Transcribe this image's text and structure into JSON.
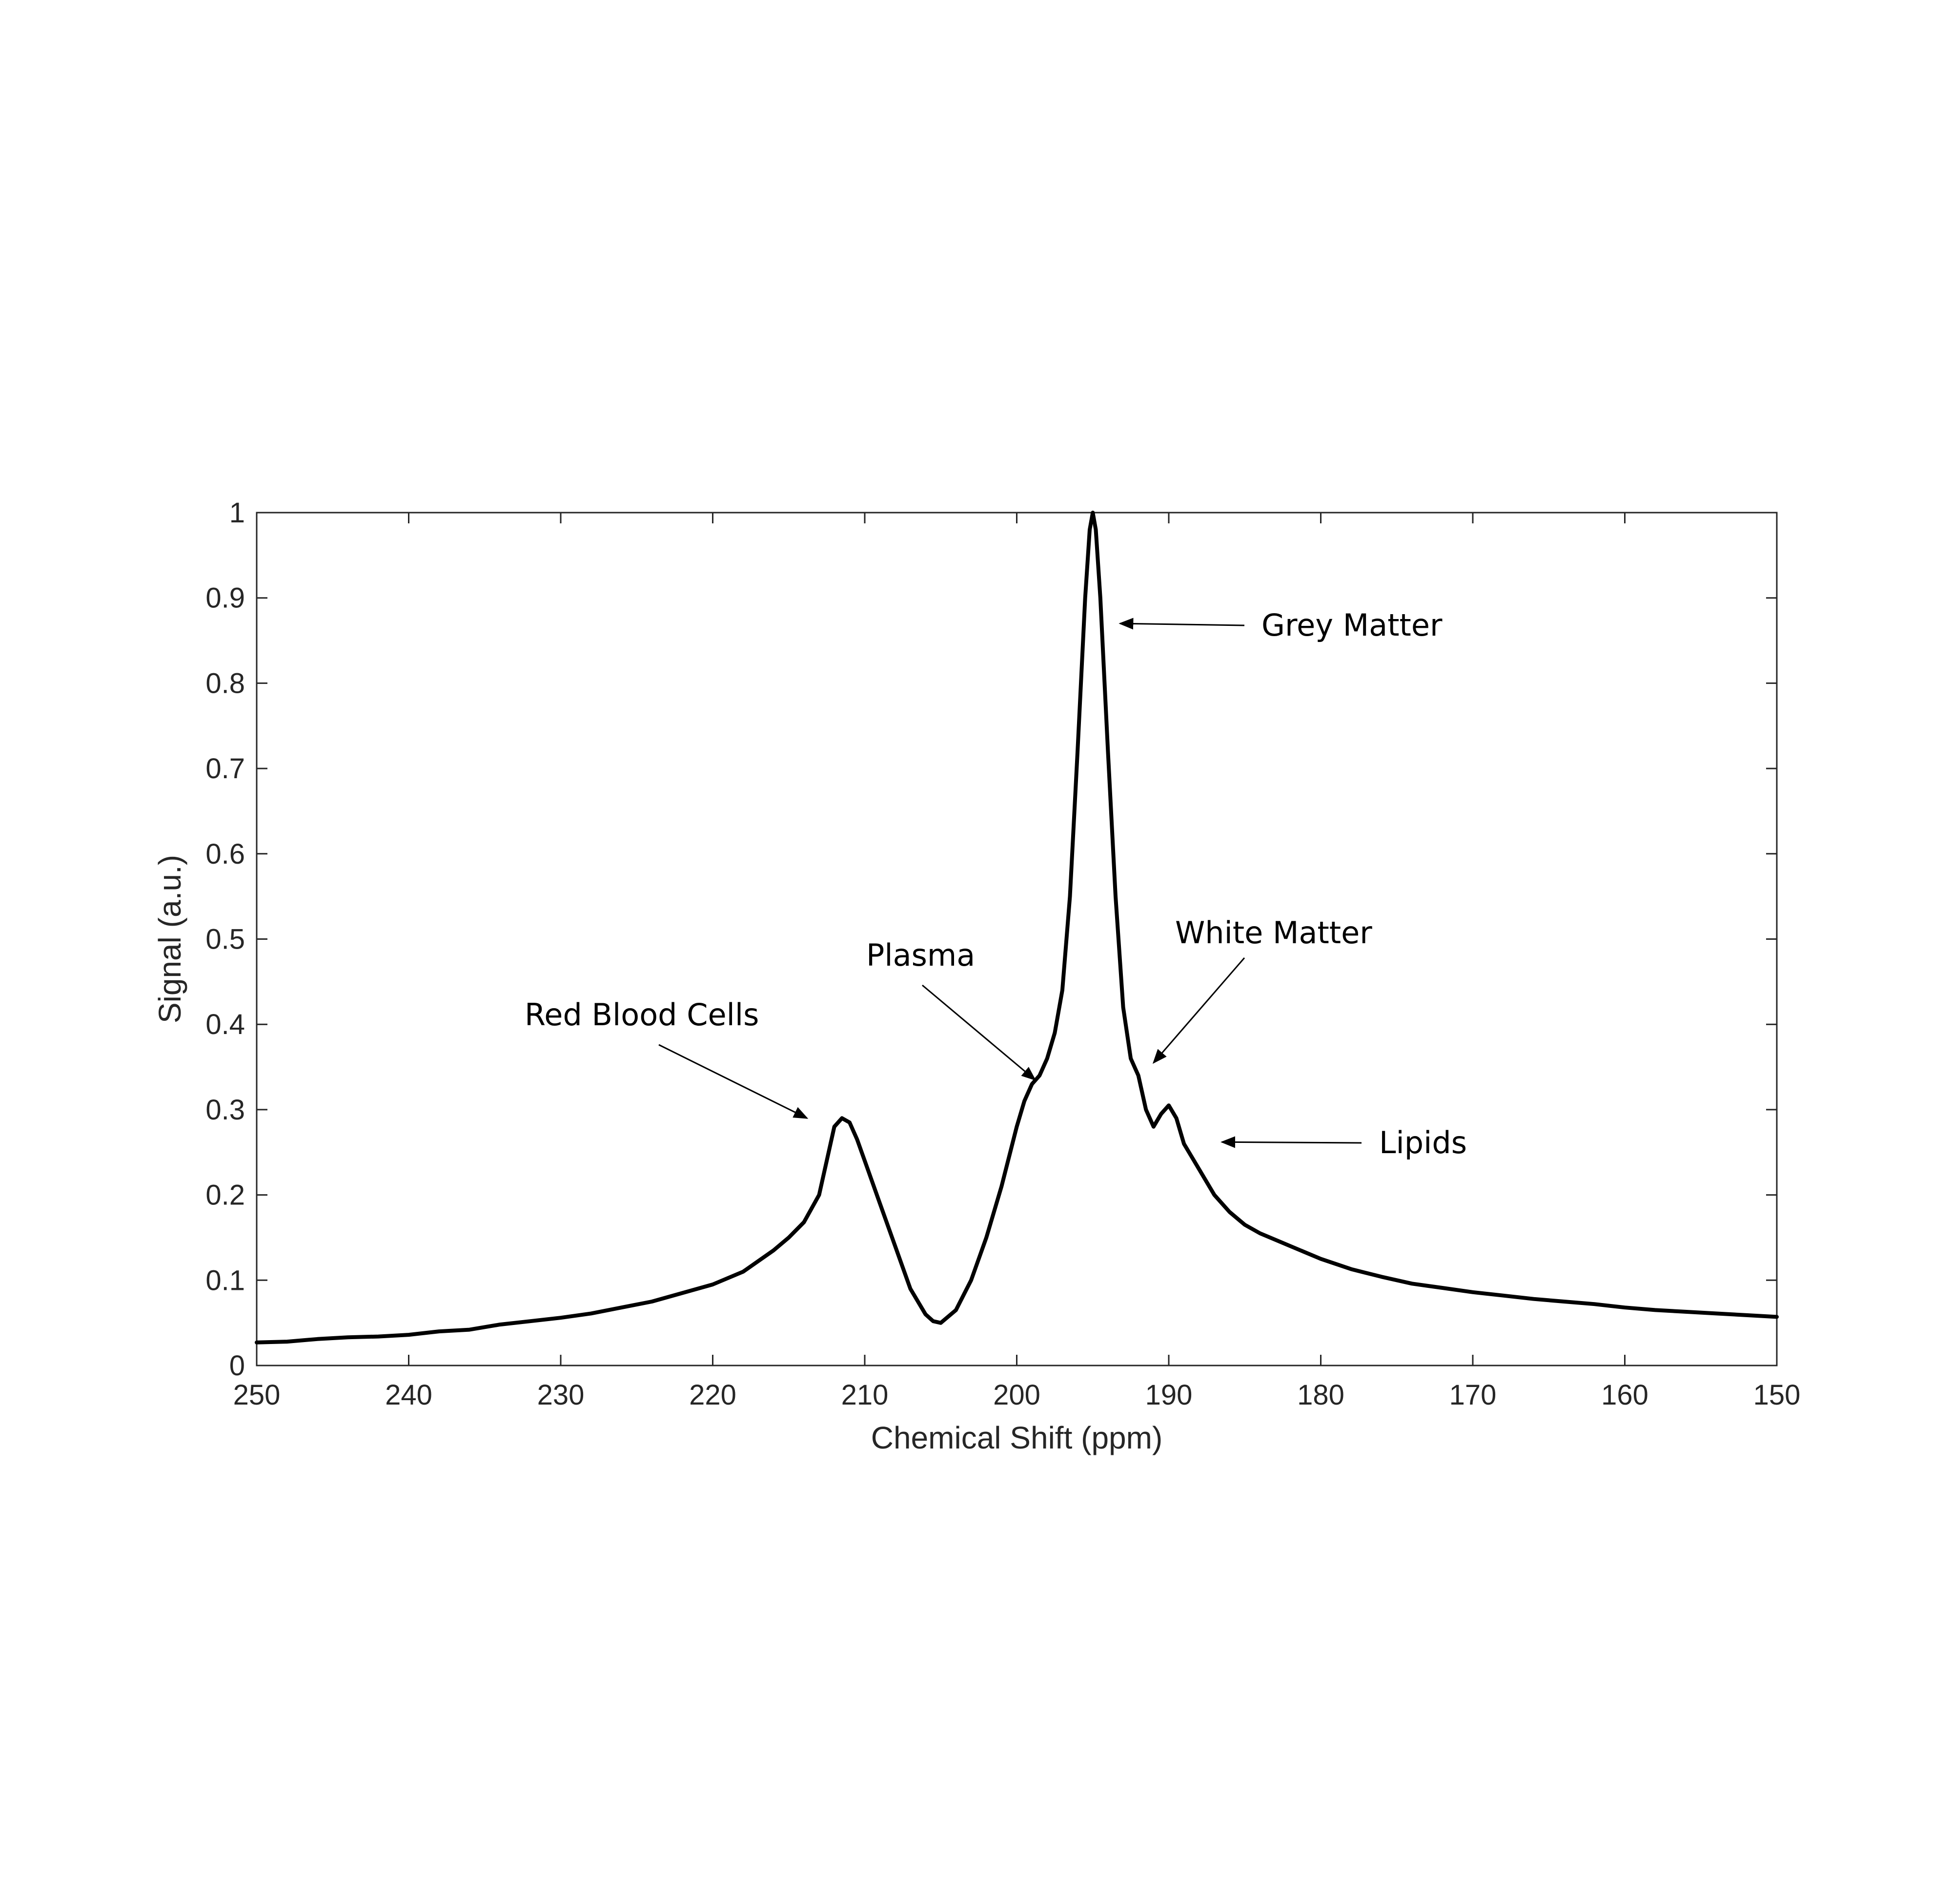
{
  "chart_data": {
    "type": "line",
    "title": "",
    "xlabel": "Chemical Shift (ppm)",
    "ylabel": "Signal (a.u.)",
    "xlim": [
      250,
      150
    ],
    "ylim": [
      0,
      1
    ],
    "x_reversed": true,
    "grid": false,
    "legend": "none",
    "x_ticks": [
      250,
      240,
      230,
      220,
      210,
      200,
      190,
      180,
      170,
      160,
      150
    ],
    "y_ticks": [
      0,
      0.1,
      0.2,
      0.3,
      0.4,
      0.5,
      0.6,
      0.7,
      0.8,
      0.9,
      1
    ],
    "x_tick_labels": [
      "250",
      "240",
      "230",
      "220",
      "210",
      "200",
      "190",
      "180",
      "170",
      "160",
      "150"
    ],
    "y_tick_labels": [
      "0",
      "0.1",
      "0.2",
      "0.3",
      "0.4",
      "0.5",
      "0.6",
      "0.7",
      "0.8",
      "0.9",
      "1"
    ],
    "line_color": "#000000",
    "series": [
      {
        "x": [
          250,
          248,
          246,
          244,
          242,
          240,
          238,
          236,
          234,
          232,
          230,
          228,
          226,
          224,
          222,
          220,
          218,
          216,
          215,
          214,
          213,
          212.5,
          212,
          211.5,
          211,
          210.5,
          210,
          209,
          208,
          207,
          206,
          205.5,
          205,
          204,
          203,
          202,
          201,
          200,
          199.5,
          199,
          198.5,
          198,
          197.5,
          197,
          196.5,
          196,
          195.5,
          195.2,
          195,
          194.8,
          194.5,
          194,
          193.5,
          193,
          192.5,
          192,
          191.5,
          191,
          190.5,
          190,
          189.5,
          189,
          188.5,
          188,
          187,
          186,
          185,
          184,
          182,
          180,
          178,
          176,
          174,
          172,
          170,
          168,
          166,
          164,
          162,
          160,
          158,
          156,
          154,
          152,
          150
        ],
        "y": [
          0.027,
          0.028,
          0.031,
          0.033,
          0.034,
          0.036,
          0.04,
          0.042,
          0.048,
          0.052,
          0.056,
          0.061,
          0.068,
          0.075,
          0.085,
          0.095,
          0.11,
          0.135,
          0.15,
          0.168,
          0.2,
          0.24,
          0.28,
          0.29,
          0.285,
          0.265,
          0.24,
          0.19,
          0.14,
          0.09,
          0.06,
          0.052,
          0.05,
          0.065,
          0.1,
          0.15,
          0.21,
          0.28,
          0.31,
          0.33,
          0.34,
          0.36,
          0.39,
          0.44,
          0.55,
          0.72,
          0.9,
          0.98,
          1.0,
          0.98,
          0.9,
          0.72,
          0.55,
          0.42,
          0.36,
          0.34,
          0.3,
          0.28,
          0.295,
          0.305,
          0.29,
          0.26,
          0.245,
          0.23,
          0.2,
          0.18,
          0.165,
          0.155,
          0.14,
          0.125,
          0.113,
          0.104,
          0.096,
          0.091,
          0.086,
          0.082,
          0.078,
          0.075,
          0.072,
          0.068,
          0.065,
          0.063,
          0.061,
          0.059,
          0.057
        ]
      }
    ],
    "annotations": [
      {
        "text": "Grey Matter",
        "target_x": 193.2,
        "target_y": 0.87
      },
      {
        "text": "White Matter",
        "target_x": 191.0,
        "target_y": 0.355
      },
      {
        "text": "Plasma",
        "target_x": 198.8,
        "target_y": 0.335
      },
      {
        "text": "Red Blood Cells",
        "target_x": 213.8,
        "target_y": 0.29
      },
      {
        "text": "Lipids",
        "target_x": 186.5,
        "target_y": 0.262
      }
    ]
  }
}
